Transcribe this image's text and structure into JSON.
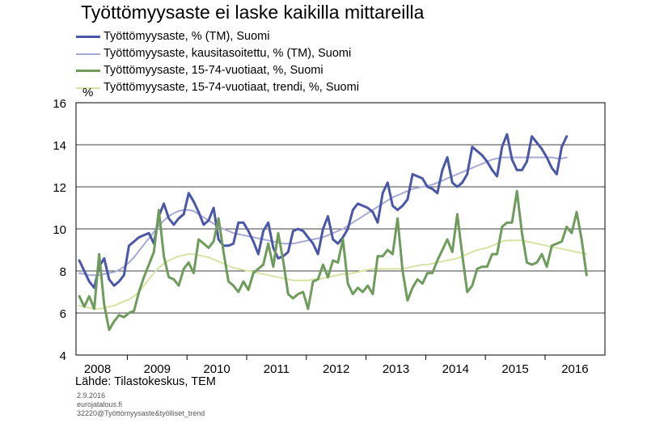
{
  "chart_data": {
    "type": "line",
    "title": "Työttömyysaste ei laske kaikilla mittareilla",
    "ylabel": "%",
    "xlabel": "",
    "ylim": [
      4,
      16
    ],
    "yticks": [
      4,
      6,
      8,
      10,
      12,
      14,
      16
    ],
    "x_tick_labels": [
      "2008",
      "2009",
      "2010",
      "2011",
      "2012",
      "2013",
      "2014",
      "2015",
      "2016"
    ],
    "x_start": "2008-01",
    "grid": true,
    "legend_placement": "top-left, above plot",
    "series": [
      {
        "name": "Työttömyysaste, % (TM), Suomi",
        "color": "#4a56a6",
        "width": 3,
        "values": [
          8.5,
          8.0,
          7.5,
          7.2,
          8.2,
          8.6,
          7.6,
          7.3,
          7.5,
          7.8,
          9.2,
          9.4,
          9.6,
          9.7,
          9.8,
          9.3,
          10.6,
          11.2,
          10.5,
          10.2,
          10.5,
          10.7,
          11.7,
          11.3,
          10.8,
          10.2,
          10.4,
          11.0,
          9.5,
          9.2,
          9.2,
          9.3,
          10.3,
          10.3,
          9.9,
          9.4,
          8.8,
          9.9,
          10.3,
          9.1,
          8.6,
          8.7,
          8.9,
          9.9,
          10.0,
          9.9,
          9.6,
          9.3,
          8.8,
          10.0,
          10.6,
          9.5,
          9.3,
          9.6,
          10.0,
          10.9,
          11.2,
          11.1,
          11.0,
          10.8,
          10.3,
          11.7,
          12.2,
          11.1,
          10.9,
          11.1,
          11.4,
          12.6,
          12.5,
          12.4,
          12.0,
          11.9,
          11.7,
          12.8,
          13.4,
          12.2,
          12.0,
          12.2,
          12.6,
          13.9,
          13.7,
          13.5,
          13.2,
          12.8,
          12.5,
          13.9,
          14.5,
          13.3,
          12.8,
          12.8,
          13.2,
          14.4,
          14.1,
          13.8,
          13.4,
          12.9,
          12.6,
          13.9,
          14.4
        ]
      },
      {
        "name": "Työttömyysaste, kausitasoitettu, % (TM), Suomi",
        "color": "#a6a9d4",
        "width": 2,
        "values": [
          7.9,
          7.85,
          7.8,
          7.8,
          7.8,
          7.85,
          7.9,
          7.95,
          8.05,
          8.2,
          8.4,
          8.65,
          8.95,
          9.25,
          9.55,
          9.85,
          10.15,
          10.4,
          10.6,
          10.75,
          10.85,
          10.9,
          10.9,
          10.85,
          10.7,
          10.55,
          10.4,
          10.25,
          10.1,
          10.0,
          9.9,
          9.8,
          9.75,
          9.7,
          9.65,
          9.6,
          9.55,
          9.5,
          9.45,
          9.4,
          9.35,
          9.3,
          9.3,
          9.3,
          9.35,
          9.4,
          9.45,
          9.5,
          9.55,
          9.6,
          9.7,
          9.8,
          9.9,
          10.0,
          10.15,
          10.3,
          10.45,
          10.6,
          10.75,
          10.9,
          11.05,
          11.2,
          11.35,
          11.5,
          11.6,
          11.7,
          11.8,
          11.9,
          11.95,
          12.0,
          12.05,
          12.1,
          12.2,
          12.3,
          12.4,
          12.5,
          12.6,
          12.7,
          12.8,
          12.9,
          13.0,
          13.1,
          13.2,
          13.3,
          13.35,
          13.4,
          13.4,
          13.4,
          13.4,
          13.4,
          13.4,
          13.4,
          13.4,
          13.4,
          13.4,
          13.4,
          13.35,
          13.35,
          13.4
        ]
      },
      {
        "name": "Työttömyysaste, 15-74-vuotiaat, %, Suomi",
        "color": "#6f9b5c",
        "width": 3,
        "values": [
          6.8,
          6.3,
          6.8,
          6.2,
          8.8,
          6.4,
          5.2,
          5.6,
          5.9,
          5.8,
          6.0,
          6.1,
          7.0,
          7.7,
          8.3,
          8.9,
          10.9,
          8.7,
          7.7,
          7.6,
          7.3,
          8.1,
          8.4,
          7.9,
          9.5,
          9.3,
          9.1,
          9.4,
          10.5,
          8.9,
          7.5,
          7.3,
          7.0,
          7.5,
          7.1,
          7.9,
          8.1,
          8.3,
          9.3,
          8.2,
          9.8,
          8.5,
          6.9,
          6.7,
          6.9,
          7.0,
          6.2,
          7.5,
          7.6,
          8.3,
          7.7,
          8.5,
          8.4,
          9.5,
          7.4,
          6.9,
          7.2,
          7.0,
          7.3,
          6.9,
          8.7,
          8.7,
          9.0,
          8.8,
          10.5,
          8.0,
          6.6,
          7.2,
          7.6,
          7.4,
          7.9,
          7.9,
          8.5,
          9.0,
          9.5,
          8.9,
          10.7,
          8.8,
          7.0,
          7.3,
          8.1,
          8.2,
          8.2,
          8.8,
          8.8,
          10.1,
          10.3,
          10.3,
          11.8,
          9.8,
          8.4,
          8.3,
          8.4,
          8.8,
          8.2,
          9.2,
          9.3,
          9.4,
          10.1,
          9.8,
          10.8,
          9.5,
          7.8
        ]
      },
      {
        "name": "Työttömyysaste, 15-74-vuotiaat, trendi, %, Suomi",
        "color": "#d6e4a3",
        "width": 2,
        "values": [
          6.35,
          6.3,
          6.25,
          6.2,
          6.2,
          6.25,
          6.3,
          6.35,
          6.45,
          6.55,
          6.65,
          6.8,
          7.0,
          7.3,
          7.6,
          7.9,
          8.15,
          8.35,
          8.5,
          8.6,
          8.7,
          8.75,
          8.8,
          8.8,
          8.75,
          8.7,
          8.65,
          8.55,
          8.45,
          8.35,
          8.25,
          8.15,
          8.1,
          8.05,
          8.0,
          7.95,
          7.9,
          7.85,
          7.8,
          7.75,
          7.7,
          7.65,
          7.6,
          7.55,
          7.55,
          7.55,
          7.55,
          7.6,
          7.6,
          7.65,
          7.7,
          7.75,
          7.8,
          7.85,
          7.85,
          7.9,
          7.95,
          8.0,
          8.05,
          8.1,
          8.1,
          8.1,
          8.1,
          8.1,
          8.1,
          8.1,
          8.15,
          8.2,
          8.25,
          8.3,
          8.3,
          8.35,
          8.4,
          8.45,
          8.5,
          8.55,
          8.6,
          8.7,
          8.8,
          8.9,
          9.0,
          9.05,
          9.1,
          9.2,
          9.3,
          9.4,
          9.45,
          9.45,
          9.45,
          9.45,
          9.4,
          9.35,
          9.3,
          9.25,
          9.2,
          9.15,
          9.1,
          9.05,
          9.0,
          8.95,
          8.9,
          8.85,
          8.8
        ]
      }
    ]
  },
  "source": "Lähde: Tilastokeskus, TEM",
  "footnotes": [
    "2.9.2016",
    "eurojatalous.fi",
    "32220@Työttömyysaste&työlliset_trend"
  ]
}
